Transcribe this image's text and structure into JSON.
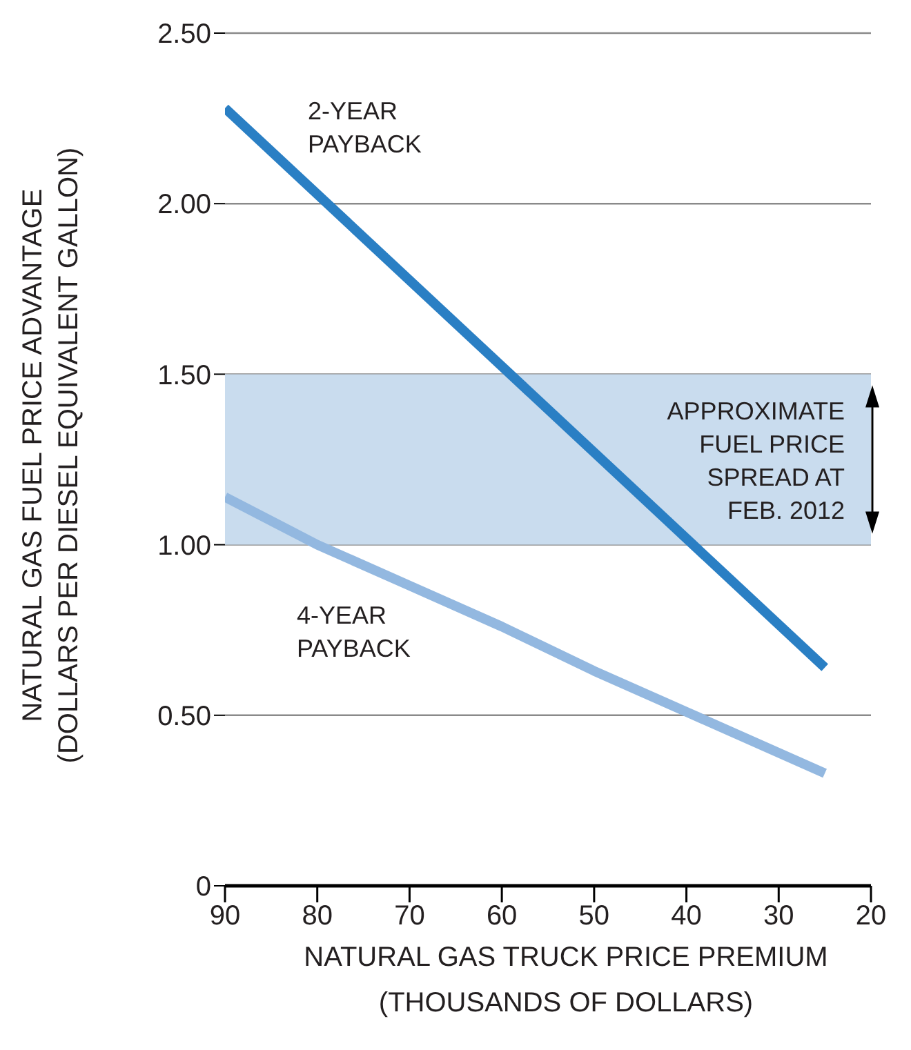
{
  "chart_data": {
    "type": "line",
    "xlabel": "NATURAL GAS TRUCK PRICE PREMIUM\n(THOUSANDS OF DOLLARS)",
    "ylabel": "NATURAL GAS FUEL PRICE ADVANTAGE\n(DOLLARS PER DIESEL EQUIVALENT GALLON)",
    "series": [
      {
        "name": "2-YEAR\nPAYBACK",
        "color": "#2a7fc4",
        "x": [
          90,
          25
        ],
        "values": [
          2.28,
          0.64
        ]
      },
      {
        "name": "4-YEAR\nPAYBACK",
        "color": "#93b8e0",
        "x": [
          90,
          80,
          70,
          60,
          50,
          40,
          25
        ],
        "values": [
          1.14,
          1.0,
          0.88,
          0.76,
          0.63,
          0.51,
          0.33
        ]
      }
    ],
    "xlim": [
      90,
      20
    ],
    "xticks": [
      90,
      80,
      70,
      60,
      50,
      40,
      30,
      20
    ],
    "ylim": [
      0,
      2.5
    ],
    "yticks": [
      0,
      {
        "value": 0.5,
        "label": "0.50"
      },
      {
        "value": 1,
        "label": "1.00"
      },
      {
        "value": 1.5,
        "label": "1.50"
      },
      {
        "value": 2,
        "label": "2.00"
      },
      {
        "value": 2.5,
        "label": "2.50"
      }
    ],
    "bands": [
      {
        "axis": "y",
        "from": 1.0,
        "to": 1.5,
        "label": "APPROXIMATE\nFUEL PRICE\nSPREAD AT\nFEB. 2012",
        "color": "#c9dcee"
      }
    ],
    "grid": "y",
    "marker": "none",
    "line_style": "solid"
  }
}
